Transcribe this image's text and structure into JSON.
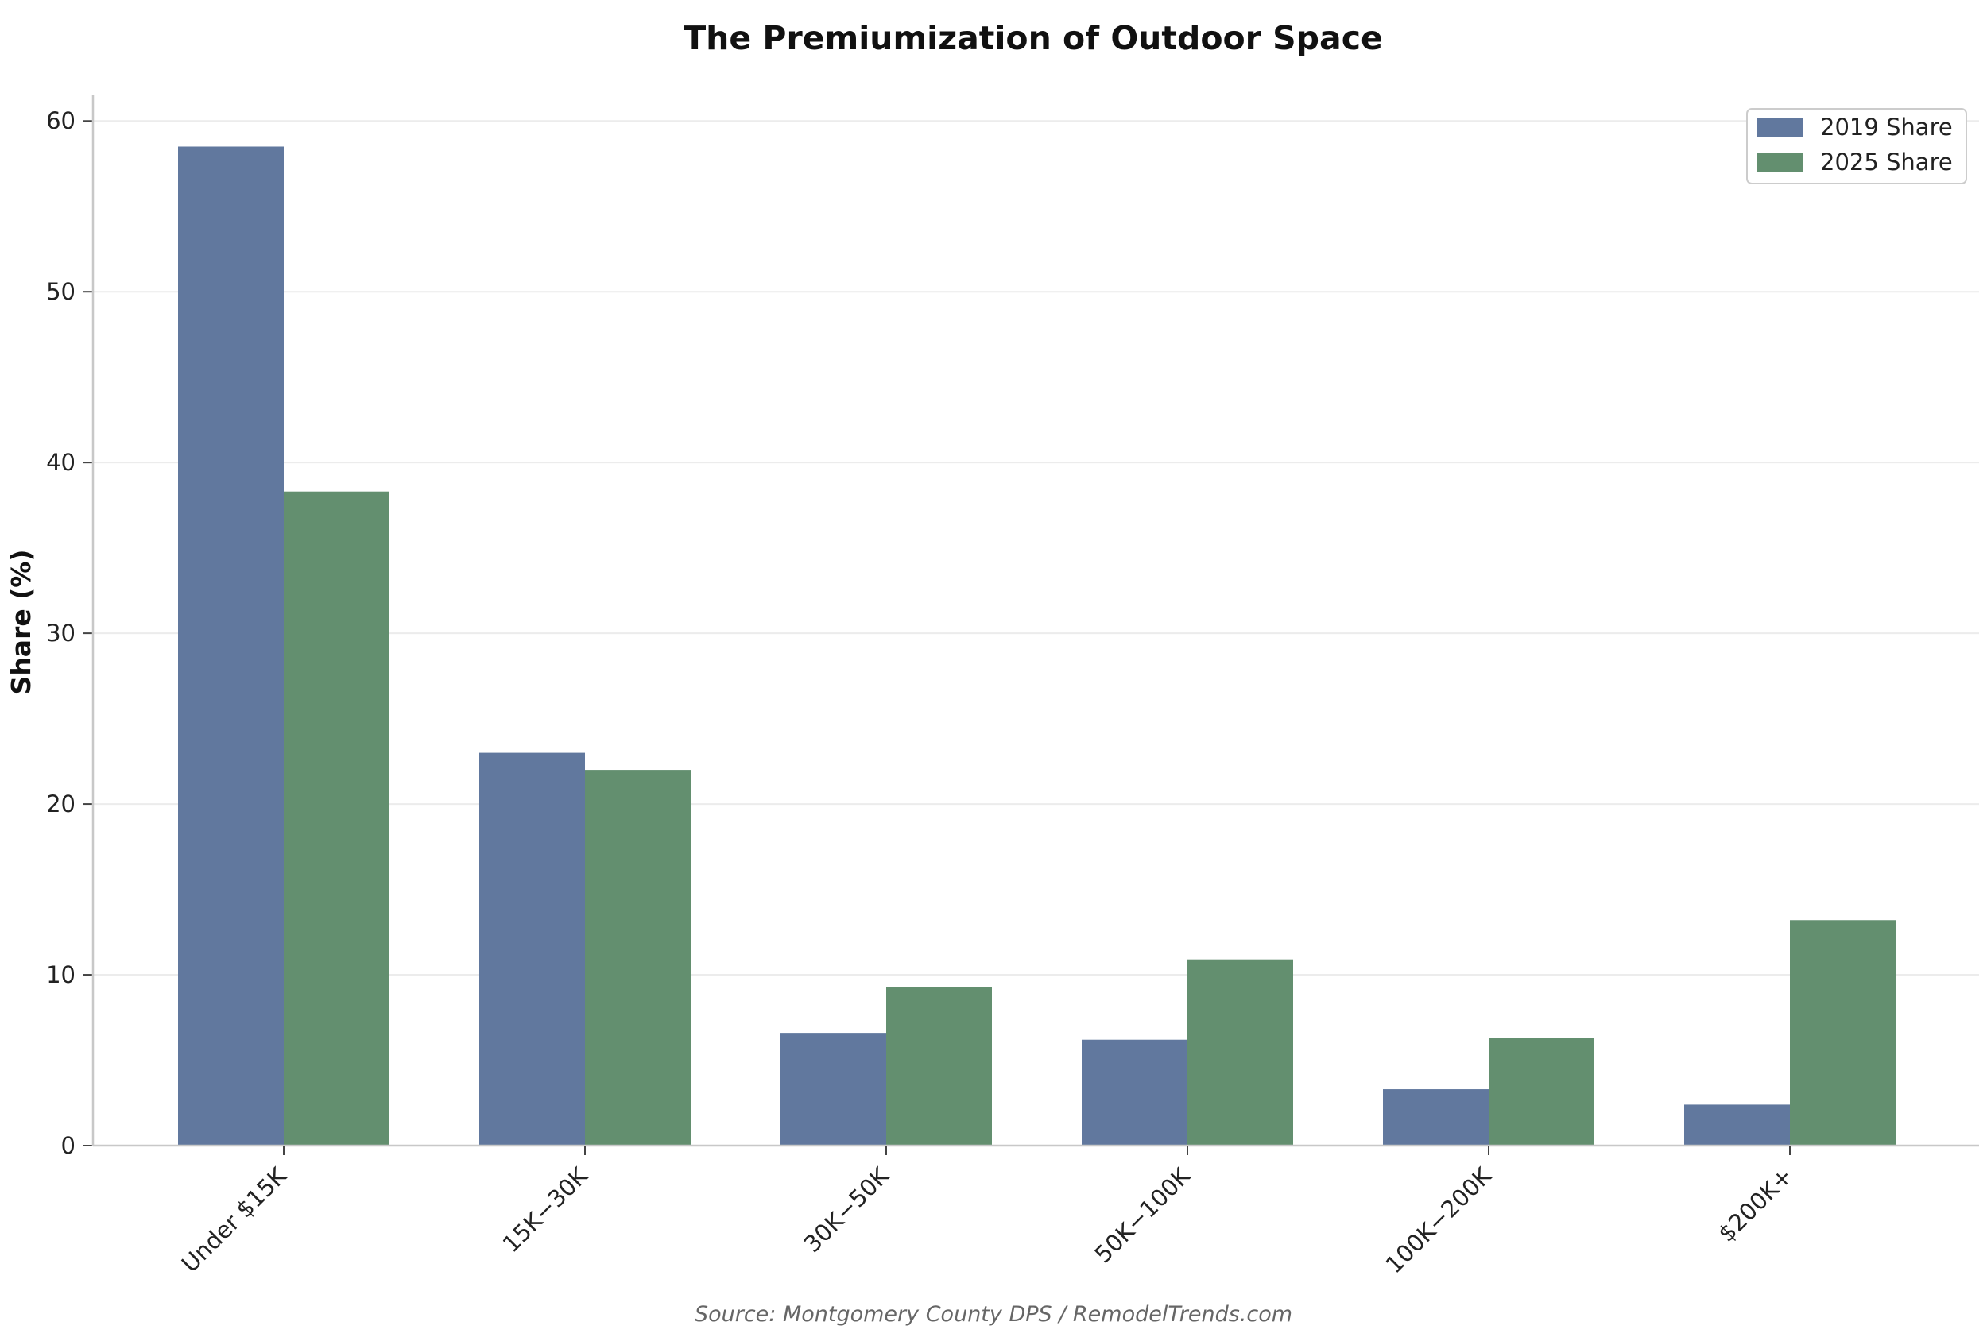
{
  "chart_data": {
    "type": "bar",
    "title": "The Premiumization of Outdoor Space",
    "xlabel": "",
    "ylabel": "Share (%)",
    "ylim": [
      0,
      61.5
    ],
    "yticks": [
      0,
      10,
      20,
      30,
      40,
      50,
      60
    ],
    "grid": "y-axis, light",
    "legend_position": "top-right",
    "categories": [
      "Under $15K",
      "15K−30K",
      "30K−50K",
      "50K−100K",
      "100K−200K",
      "$200K+"
    ],
    "series": [
      {
        "name": "2019 Share",
        "color": "#61789e",
        "values": [
          58.5,
          23.0,
          6.6,
          6.2,
          3.3,
          2.4
        ]
      },
      {
        "name": "2025 Share",
        "color": "#638f6f",
        "values": [
          38.3,
          22.0,
          9.3,
          10.9,
          6.3,
          13.2
        ]
      }
    ],
    "source": "Source: Montgomery County DPS / RemodelTrends.com"
  }
}
